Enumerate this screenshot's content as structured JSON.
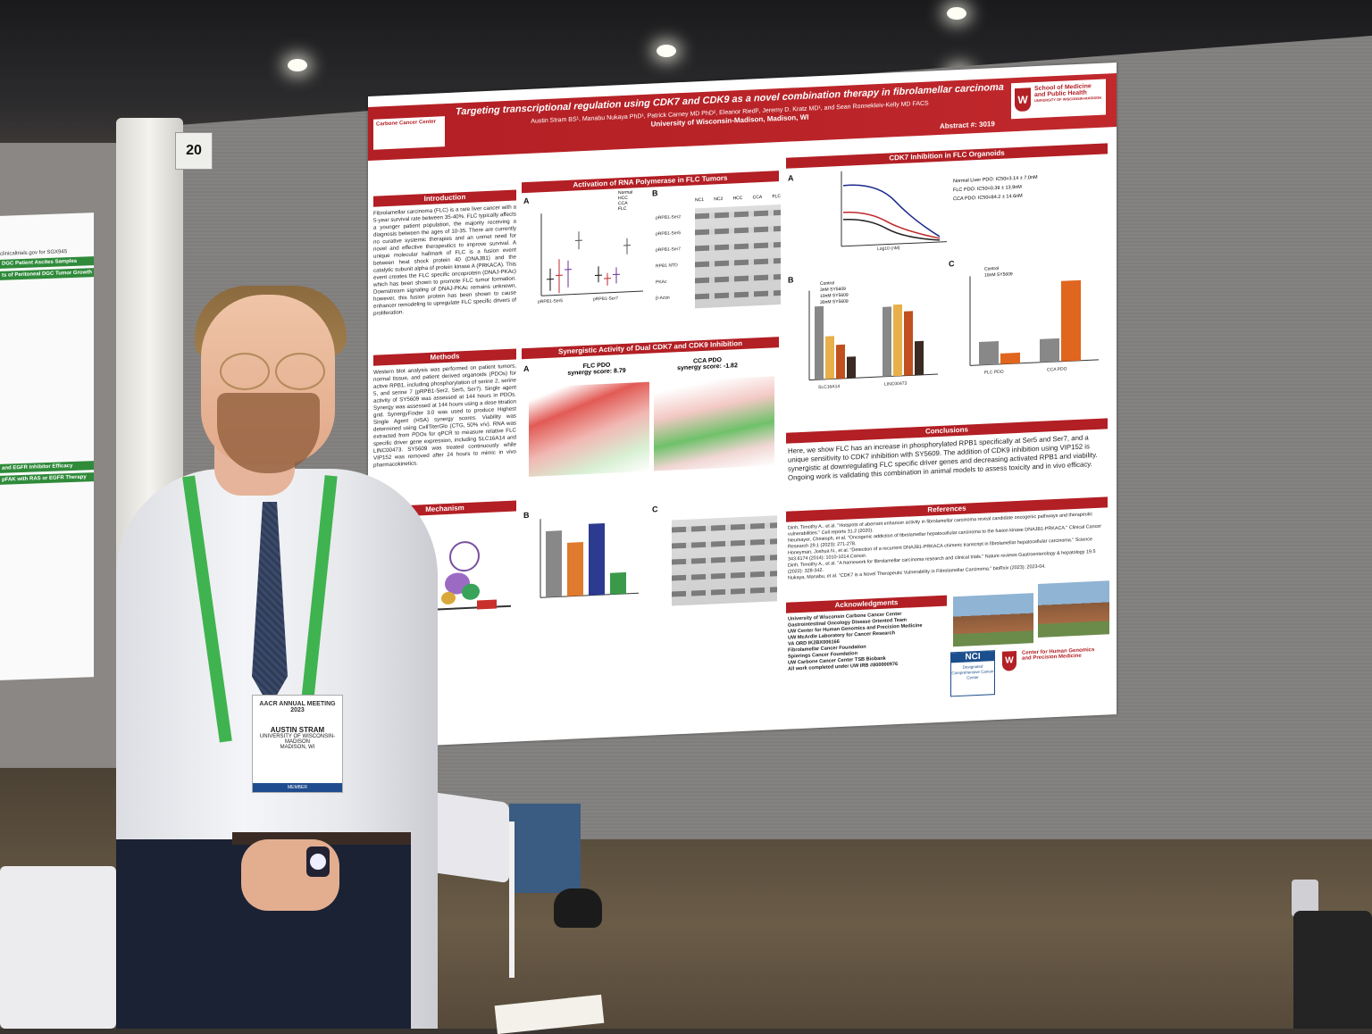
{
  "poster": {
    "title": "Targeting transcriptional regulation using CDK7 and CDK9 as a novel combination therapy in fibrolamellar carcinoma",
    "authors": "Austin Stram BS¹, Manabu Nukaya PhD¹, Patrick Carney MD PhD², Eleanor Riedl², Jeremy D. Kratz MD¹, and Sean Ronnekleiv-Kelly MD FACS",
    "affiliations": "University of Wisconsin-Madison, Madison, WI",
    "abstract_number": "Abstract #: 3019",
    "logo_left": "Carbone Cancer Center",
    "logo_right_line1": "School of Medicine",
    "logo_right_line2": "and Public Health",
    "logo_right_line3": "UNIVERSITY OF WISCONSIN-MADISON",
    "sections": {
      "introduction": "Introduction",
      "methods": "Methods",
      "mechanism": "Mechanism",
      "activation": "Activation of RNA Polymerase in FLC Tumors",
      "synergy": "Synergistic Activity of Dual CDK7 and CDK9 Inhibition",
      "cdk7": "CDK7 Inhibition in FLC Organoids",
      "conclusions": "Conclusions",
      "references": "References",
      "acknowledgments": "Acknowledgments"
    },
    "intro_text": "Fibrolamellar carcinoma (FLC) is a rare liver cancer with a 5-year survival rate between 35-40%. FLC typically affects a younger patient population, the majority receiving a diagnosis between the ages of 10-35. There are currently no curative systemic therapies and an unmet need for novel and effective therapeutics to improve survival. A unique molecular hallmark of FLC is a fusion event between heat shock protein 40 (DNAJB1) and the catalytic subunit alpha of protein kinase A (PRKACA). This event creates the FLC specific oncoprotein (DNAJ-PKAc) which has been shown to promote FLC tumor formation. Downstream signaling of DNAJ-PKAc remains unknown, however, this fusion protein has been shown to cause enhancer remodeling to upregulate FLC specific drivers of proliferation.",
    "methods_text": "Western blot analysis was performed on patient tumors, normal tissue, and patient derived organoids (PDOs) for active RPB1, including phosphorylation of serine 2, serine 5, and serine 7 (pRPB1-Ser2, Ser5, Ser7). Single agent activity of SY5609 was assessed at 144 hours in PDOs. Synergy was assessed at 144 hours using a dose titration grid. SynergyFinder 3.0 was used to produce Highest Single Agent (HSA) synergy scores. Viability was determined using CellTiterGlo (CTG, 50% v/v). RNA was extracted from PDOs for qPCR to measure relative FLC specific driver gene expression, including SLC16A14 and LINC00473. SY5609 was treated continuously while VIP152 was removed after 24 hours to mimic in vivo pharmacokinetics.",
    "conclusions_text": "Here, we show FLC has an increase in phosphorylated RPB1 specifically at Ser5 and Ser7, and a unique sensitivity to CDK7 inhibition with SY5609. The addition of CDK9 inhibition using VIP152 is synergistic at downregulating FLC specific driver genes and decreasing activated RPB1 and viability. Ongoing work is validating this combination in animal models to assess toxicity and in vivo efficacy.",
    "references": [
      "Dinh, Timothy A., et al. \"Hotspots of aberrant enhancer activity in fibrolamellar carcinoma reveal candidate oncogenic pathways and therapeutic vulnerabilities.\" Cell reports 31.2 (2020).",
      "Neumayer, Christoph, et al. \"Oncogenic addiction of fibrolamellar hepatocellular carcinoma to the fusion kinase DNAJB1-PRKACA.\" Clinical Cancer Research 29.1 (2023): 271-278.",
      "Honeyman, Joshua N., et al. \"Detection of a recurrent DNAJB1-PRKACA chimeric transcript in fibrolamellar hepatocellular carcinoma.\" Science 343.6174 (2014): 1010-1014.Cancer.",
      "Dinh, Timothy A., et al. \"A framework for fibrolamellar carcinoma research and clinical trials.\" Nature reviews Gastroenterology & hepatology 19.5 (2022): 328-342.",
      "Nukaya, Manabu, et al. \"CDK7 is a Novel Therapeutic Vulnerability in Fibrolamellar Carcinoma.\" bioRxiv (2023): 2023-04."
    ],
    "acknowledgments": [
      "University of Wisconsin Carbone Cancer Center",
      "Gastrointestinal Oncology Disease Oriented Team",
      "UW Center for Human Genomics and Precision Medicine",
      "UW McArdle Laboratory for Cancer Research",
      "VA ORD IK2BX006166",
      "Fibrolamellar Cancer Foundation",
      "Spierings Cancer Foundation",
      "UW Carbone Cancer Center TSB Biobank",
      "All work completed under UW IRB #800000976"
    ],
    "nci_label": "NCI",
    "nci_text": "Designated Comprehensive Cancer Center",
    "genomics_logo": "Center for Human Genomics and Precision Medicine",
    "panel_a_legend": [
      "Normal",
      "HCC",
      "CCA",
      "FLC"
    ],
    "panel_a_xlabels": [
      "pRPB1-Ser5",
      "pRPB1-Ser7"
    ],
    "panel_a_ylabel": "Relative Phosphorylation",
    "blot_columns": [
      "NC1",
      "NC2",
      "HCC",
      "CCA",
      "FLC"
    ],
    "blot_rows": [
      "pRPB1-Ser2",
      "pRPB1-Ser5",
      "pRPB1-Ser7",
      "RPB1 NTD",
      "PKAc",
      "β-Actin"
    ],
    "synergy_a_title": "FLC PDO",
    "synergy_a_score": "synergy score: 8.79",
    "synergy_b_title": "CCA PDO",
    "synergy_b_score": "synergy score: -1.82",
    "cdk7_legend": [
      "Normal Liver PDO: IC50=3.14 ± 7.0nM",
      "FLC PDO: IC50=0.39 ± 13.9nM",
      "CCA PDO: IC50=84.2 ± 14.6nM"
    ],
    "cdk7_xlabel": "Log10 (nM)",
    "cdk7_ylabel": "Normalized Viability (%)",
    "panel_b_legend": [
      "Control",
      "3nM SY5609",
      "10nM SY5609",
      "30nM SY5609"
    ],
    "panel_b_xlabels": [
      "SLC16A14",
      "LINC00473"
    ],
    "panel_b_ylabel": "Relative Expression",
    "panel_c_legend": [
      "Control",
      "10nM SY5609"
    ],
    "panel_c_xlabels": [
      "FLC PDO",
      "CCA PDO"
    ]
  },
  "booth_number": "20",
  "badge": {
    "event": "AACR ANNUAL MEETING 2023",
    "name": "AUSTIN STRAM",
    "institution": "UNIVERSITY OF WISCONSIN-MADISON",
    "location": "MADISON, WI",
    "type": "MEMBER"
  },
  "lanyard_text": "AACR",
  "left_poster": {
    "url": "clinicaltrials.gov for SGX945",
    "header1": "DGC Patient Ascites Samples",
    "header2": "ts of Peritoneal DGC Tumor Growth",
    "header3": "and EGFR Inhibitor Efficacy",
    "header4": "pFAK with RAS or EGFR Therapy"
  }
}
